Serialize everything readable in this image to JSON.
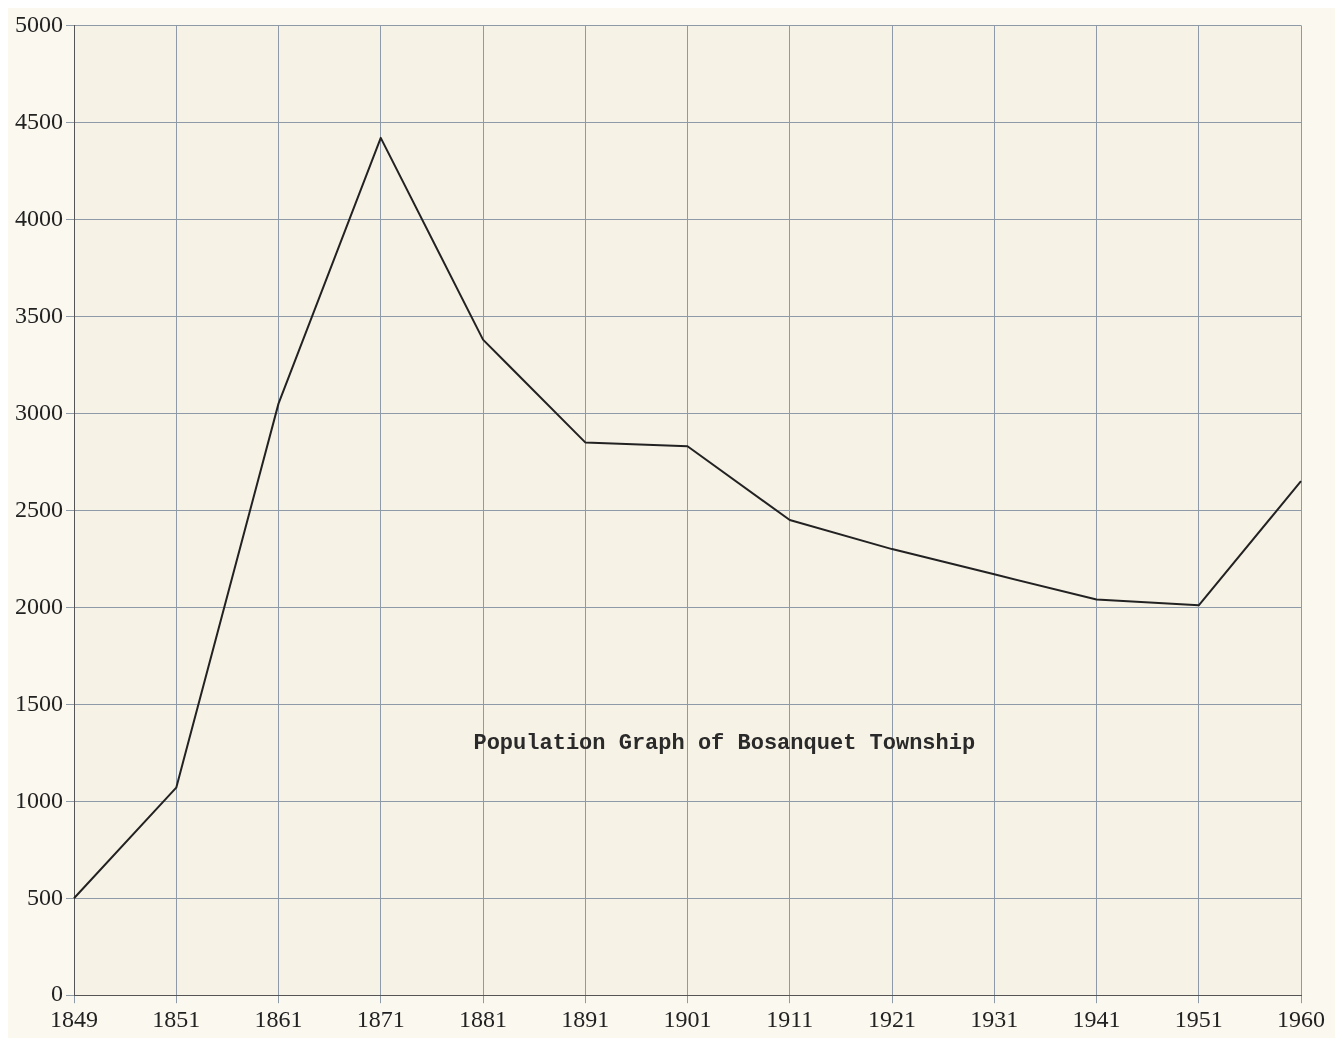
{
  "chart_data": {
    "type": "line",
    "title": "Population Graph of Bosanquet Township",
    "categories": [
      "1849",
      "1851",
      "1861",
      "1871",
      "1881",
      "1891",
      "1901",
      "1911",
      "1921",
      "1931",
      "1941",
      "1951",
      "1960"
    ],
    "series": [
      {
        "color": "#222222",
        "values": [
          500,
          1070,
          3050,
          4420,
          3380,
          2850,
          2830,
          2450,
          2300,
          2170,
          2040,
          2010,
          2650
        ]
      }
    ],
    "ylim": [
      0,
      5000
    ],
    "yticks": [
      0,
      500,
      1000,
      1500,
      2000,
      2500,
      3000,
      3500,
      4000,
      4500,
      5000
    ],
    "grid": true,
    "legend": false,
    "marker": "none",
    "line_style": "solid"
  }
}
